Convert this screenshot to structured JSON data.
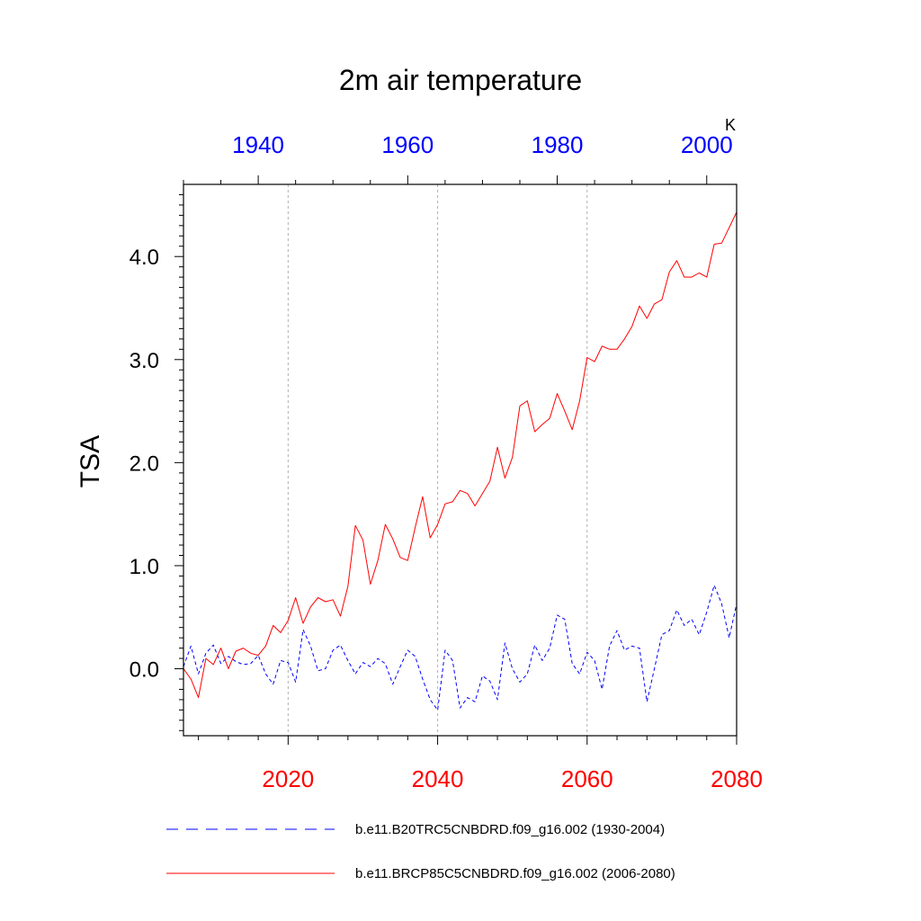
{
  "chart_data": {
    "type": "line",
    "title": "2m air temperature",
    "ylabel": "TSA",
    "units": "K",
    "ylim": [
      -0.65,
      4.7
    ],
    "y_ticks": [
      {
        "value": 0.0,
        "label": "0.0"
      },
      {
        "value": 1.0,
        "label": "1.0"
      },
      {
        "value": 2.0,
        "label": "2.0"
      },
      {
        "value": 3.0,
        "label": "3.0"
      },
      {
        "value": 4.0,
        "label": "4.0"
      }
    ],
    "bottom_axis": {
      "color": "#ff0000",
      "xlim": [
        2006,
        2080
      ],
      "ticks": [
        {
          "value": 2020,
          "label": "2020"
        },
        {
          "value": 2040,
          "label": "2040"
        },
        {
          "value": 2060,
          "label": "2060"
        },
        {
          "value": 2080,
          "label": "2080"
        }
      ]
    },
    "top_axis": {
      "color": "#0000ff",
      "xlim": [
        1930,
        2004
      ],
      "ticks": [
        {
          "value": 1940,
          "label": "1940"
        },
        {
          "value": 1960,
          "label": "1960"
        },
        {
          "value": 1980,
          "label": "1980"
        },
        {
          "value": 2000,
          "label": "2000"
        }
      ]
    },
    "gridlines_x": [
      2020,
      2040,
      2060
    ],
    "series": [
      {
        "name": "b.e11.B20TRC5CNBDRD.f09_g16.002 (1930-2004)",
        "color": "#0000ff",
        "dash": "dashed",
        "axis": "top",
        "x": [
          1930,
          1931,
          1932,
          1933,
          1934,
          1935,
          1936,
          1937,
          1938,
          1939,
          1940,
          1941,
          1942,
          1943,
          1944,
          1945,
          1946,
          1947,
          1948,
          1949,
          1950,
          1951,
          1952,
          1953,
          1954,
          1955,
          1956,
          1957,
          1958,
          1959,
          1960,
          1961,
          1962,
          1963,
          1964,
          1965,
          1966,
          1967,
          1968,
          1969,
          1970,
          1971,
          1972,
          1973,
          1974,
          1975,
          1976,
          1977,
          1978,
          1979,
          1980,
          1981,
          1982,
          1983,
          1984,
          1985,
          1986,
          1987,
          1988,
          1989,
          1990,
          1991,
          1992,
          1993,
          1994,
          1995,
          1996,
          1997,
          1998,
          1999,
          2000,
          2001,
          2002,
          2003,
          2004
        ],
        "values": [
          0.02,
          0.22,
          -0.05,
          0.15,
          0.23,
          0.05,
          0.12,
          0.07,
          0.04,
          0.05,
          0.13,
          -0.05,
          -0.15,
          0.08,
          0.06,
          -0.13,
          0.38,
          0.22,
          -0.02,
          0.0,
          0.18,
          0.23,
          0.08,
          -0.05,
          0.06,
          0.02,
          0.1,
          0.05,
          -0.15,
          0.02,
          0.18,
          0.12,
          -0.1,
          -0.3,
          -0.4,
          0.18,
          0.08,
          -0.38,
          -0.28,
          -0.32,
          -0.07,
          -0.12,
          -0.3,
          0.25,
          0.0,
          -0.13,
          -0.05,
          0.23,
          0.08,
          0.2,
          0.52,
          0.48,
          0.05,
          -0.05,
          0.16,
          0.08,
          -0.2,
          0.22,
          0.37,
          0.18,
          0.22,
          0.2,
          -0.32,
          0.0,
          0.33,
          0.37,
          0.57,
          0.42,
          0.48,
          0.33,
          0.55,
          0.81,
          0.63,
          0.3,
          0.63
        ]
      },
      {
        "name": "b.e11.BRCP85C5CNBDRD.f09_g16.002 (2006-2080)",
        "color": "#ff0000",
        "dash": "solid",
        "axis": "bottom",
        "x": [
          2006,
          2007,
          2008,
          2009,
          2010,
          2011,
          2012,
          2013,
          2014,
          2015,
          2016,
          2017,
          2018,
          2019,
          2020,
          2021,
          2022,
          2023,
          2024,
          2025,
          2026,
          2027,
          2028,
          2029,
          2030,
          2031,
          2032,
          2033,
          2034,
          2035,
          2036,
          2037,
          2038,
          2039,
          2040,
          2041,
          2042,
          2043,
          2044,
          2045,
          2046,
          2047,
          2048,
          2049,
          2050,
          2051,
          2052,
          2053,
          2054,
          2055,
          2056,
          2057,
          2058,
          2059,
          2060,
          2061,
          2062,
          2063,
          2064,
          2065,
          2066,
          2067,
          2068,
          2069,
          2070,
          2071,
          2072,
          2073,
          2074,
          2075,
          2076,
          2077,
          2078,
          2079,
          2080
        ],
        "values": [
          0.0,
          -0.1,
          -0.28,
          0.1,
          0.04,
          0.2,
          0.0,
          0.17,
          0.2,
          0.15,
          0.13,
          0.22,
          0.42,
          0.35,
          0.47,
          0.69,
          0.44,
          0.6,
          0.69,
          0.65,
          0.67,
          0.51,
          0.8,
          1.39,
          1.25,
          0.82,
          1.05,
          1.4,
          1.26,
          1.08,
          1.05,
          1.37,
          1.67,
          1.27,
          1.4,
          1.6,
          1.62,
          1.73,
          1.7,
          1.58,
          1.7,
          1.82,
          2.15,
          1.85,
          2.05,
          2.55,
          2.6,
          2.3,
          2.37,
          2.43,
          2.67,
          2.5,
          2.32,
          2.6,
          3.02,
          2.98,
          3.13,
          3.1,
          3.1,
          3.2,
          3.32,
          3.52,
          3.4,
          3.54,
          3.58,
          3.85,
          3.96,
          3.8,
          3.8,
          3.84,
          3.8,
          4.12,
          4.13,
          4.28,
          4.43
        ]
      }
    ]
  }
}
